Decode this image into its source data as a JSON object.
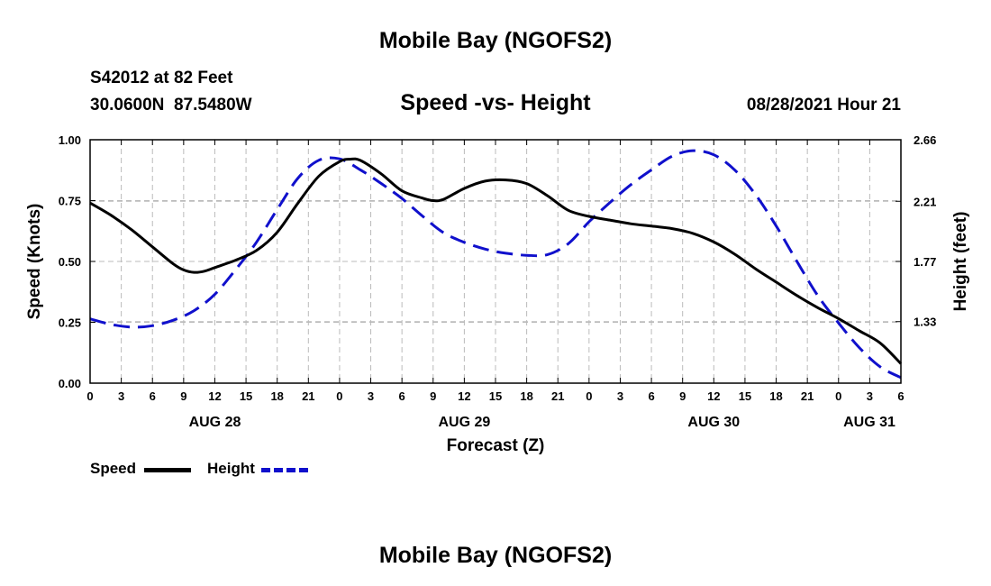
{
  "page": {
    "top_title": "Mobile Bay (NGOFS2)",
    "bottom_title": "Mobile Bay (NGOFS2)",
    "station": "S42012 at 82 Feet",
    "coords": "30.0600N  87.5480W",
    "subtitle": "Speed -vs- Height",
    "timestamp": "08/28/2021 Hour 21"
  },
  "legend": {
    "speed_label": "Speed",
    "height_label": "Height"
  },
  "colors": {
    "speed": "#000000",
    "height": "#1010cc",
    "grid": "#bbbbbb"
  },
  "chart_data": {
    "type": "line",
    "title": "Speed -vs- Height",
    "xlabel": "Forecast (Z)",
    "ylabel": "Speed (Knots)",
    "y2label": "Height (feet)",
    "x_unit": "hours since 2021-08-28 00Z",
    "xlim": [
      0,
      78
    ],
    "ylim": [
      0,
      1.0
    ],
    "y2lim": [
      0.88,
      2.66
    ],
    "x_ticks": [
      0,
      3,
      6,
      9,
      12,
      15,
      18,
      21,
      24,
      27,
      30,
      33,
      36,
      39,
      42,
      45,
      48,
      51,
      54,
      57,
      60,
      63,
      66,
      69,
      72,
      75,
      78
    ],
    "x_tick_labels": [
      "0",
      "3",
      "6",
      "9",
      "12",
      "15",
      "18",
      "21",
      "0",
      "3",
      "6",
      "9",
      "12",
      "15",
      "18",
      "21",
      "0",
      "3",
      "6",
      "9",
      "12",
      "15",
      "18",
      "21",
      "0",
      "3",
      "6"
    ],
    "day_labels": [
      {
        "x": 12,
        "label": "AUG 28"
      },
      {
        "x": 36,
        "label": "AUG 29"
      },
      {
        "x": 60,
        "label": "AUG 30"
      },
      {
        "x": 78,
        "label": "AUG 31"
      }
    ],
    "y_ticks": [
      0,
      0.25,
      0.5,
      0.75,
      1.0
    ],
    "y_tick_labels": [
      "0.00",
      "0.25",
      "0.50",
      "0.75",
      "1.00"
    ],
    "y2_ticks": [
      1.33,
      1.77,
      2.21,
      2.66
    ],
    "y2_tick_labels": [
      "1.33",
      "1.77",
      "2.21",
      "2.66"
    ],
    "series": [
      {
        "name": "Speed",
        "axis": "left",
        "style": "solid",
        "x": [
          0,
          2,
          4,
          6,
          8,
          9,
          10,
          11,
          12,
          14,
          16,
          18,
          20,
          22,
          24,
          25,
          26,
          28,
          30,
          32,
          33,
          34,
          36,
          38,
          40,
          42,
          44,
          46,
          48,
          50,
          52,
          54,
          56,
          58,
          60,
          62,
          64,
          66,
          68,
          70,
          72,
          74,
          76,
          78
        ],
        "values": [
          0.74,
          0.69,
          0.63,
          0.56,
          0.49,
          0.465,
          0.455,
          0.46,
          0.475,
          0.505,
          0.545,
          0.62,
          0.74,
          0.85,
          0.91,
          0.92,
          0.915,
          0.86,
          0.79,
          0.76,
          0.75,
          0.755,
          0.8,
          0.83,
          0.835,
          0.82,
          0.77,
          0.71,
          0.685,
          0.67,
          0.655,
          0.645,
          0.635,
          0.615,
          0.58,
          0.53,
          0.47,
          0.415,
          0.36,
          0.31,
          0.265,
          0.215,
          0.165,
          0.08
        ]
      },
      {
        "name": "Height",
        "axis": "right",
        "style": "dashed",
        "x": [
          0,
          2,
          4,
          6,
          8,
          10,
          12,
          14,
          16,
          18,
          20,
          22,
          24,
          26,
          28,
          30,
          32,
          34,
          36,
          38,
          40,
          42,
          44,
          46,
          48,
          50,
          52,
          54,
          56,
          58,
          60,
          62,
          64,
          66,
          68,
          70,
          72,
          74,
          76,
          78
        ],
        "values": [
          1.35,
          1.31,
          1.29,
          1.3,
          1.34,
          1.41,
          1.53,
          1.71,
          1.91,
          2.15,
          2.38,
          2.51,
          2.52,
          2.44,
          2.34,
          2.23,
          2.1,
          1.98,
          1.91,
          1.86,
          1.83,
          1.815,
          1.82,
          1.9,
          2.06,
          2.2,
          2.33,
          2.44,
          2.54,
          2.58,
          2.55,
          2.44,
          2.26,
          2.03,
          1.77,
          1.52,
          1.32,
          1.14,
          1.0,
          0.92
        ]
      }
    ]
  }
}
